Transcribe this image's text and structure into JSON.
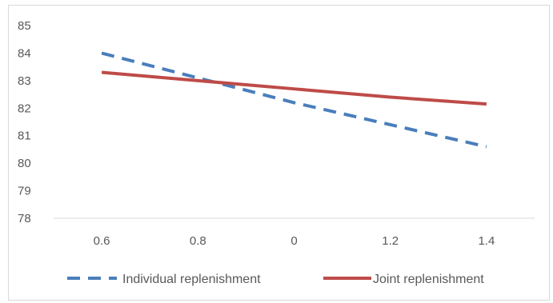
{
  "chart_data": {
    "type": "line",
    "categories": [
      "0.6",
      "0.8",
      "0",
      "1.2",
      "1.4"
    ],
    "series": [
      {
        "name": "Individual replenishment",
        "values": [
          84.0,
          83.1,
          82.2,
          81.4,
          80.6
        ],
        "color": "#4a7ebb",
        "style": "dashed"
      },
      {
        "name": "Joint replenishment",
        "values": [
          83.3,
          83.0,
          82.7,
          82.4,
          82.15
        ],
        "color": "#be4b48",
        "style": "solid"
      }
    ],
    "ylim": [
      78,
      85
    ],
    "yticks": [
      "78",
      "79",
      "80",
      "81",
      "82",
      "83",
      "84",
      "85"
    ],
    "grid": false,
    "legend": "bottom"
  }
}
